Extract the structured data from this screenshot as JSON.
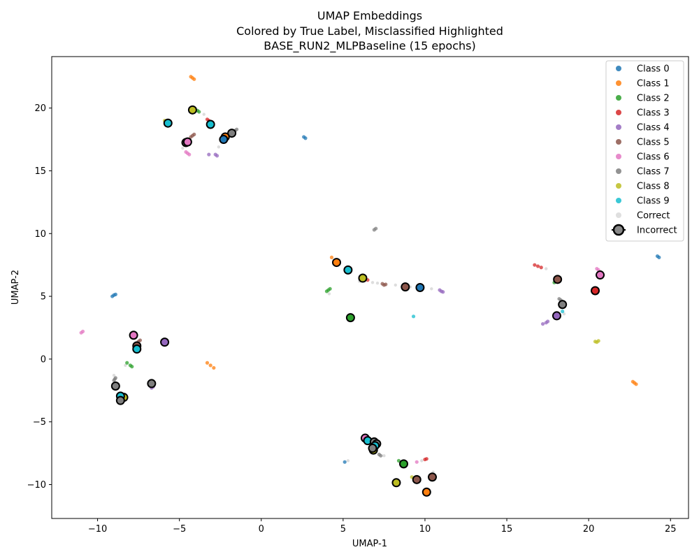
{
  "chart_data": {
    "type": "scatter",
    "title_lines": [
      "UMAP Embeddings",
      "Colored by True Label, Misclassified Highlighted",
      "BASE_RUN2_MLPBaseline (15 epochs)"
    ],
    "xlabel": "UMAP-1",
    "ylabel": "UMAP-2",
    "xlim": [
      -12.8,
      26.1
    ],
    "ylim": [
      -12.7,
      24.1
    ],
    "xticks": [
      -10,
      -5,
      0,
      5,
      10,
      15,
      20,
      25
    ],
    "yticks": [
      -10,
      -5,
      0,
      5,
      10,
      15,
      20
    ],
    "grid": false,
    "legend_position": "top-right",
    "colors": {
      "Class 0": "#1f77b4",
      "Class 1": "#ff7f0e",
      "Class 2": "#2ca02c",
      "Class 3": "#d62728",
      "Class 4": "#9467bd",
      "Class 5": "#8c564b",
      "Class 6": "#e377c2",
      "Class 7": "#7f7f7f",
      "Class 8": "#bcbd22",
      "Class 9": "#17becf",
      "Correct": "#d9d9d9"
    },
    "legend": [
      {
        "label": "Class 0",
        "color": "#1f77b4",
        "kind": "dot"
      },
      {
        "label": "Class 1",
        "color": "#ff7f0e",
        "kind": "dot"
      },
      {
        "label": "Class 2",
        "color": "#2ca02c",
        "kind": "dot"
      },
      {
        "label": "Class 3",
        "color": "#d62728",
        "kind": "dot"
      },
      {
        "label": "Class 4",
        "color": "#9467bd",
        "kind": "dot"
      },
      {
        "label": "Class 5",
        "color": "#8c564b",
        "kind": "dot"
      },
      {
        "label": "Class 6",
        "color": "#e377c2",
        "kind": "dot"
      },
      {
        "label": "Class 7",
        "color": "#7f7f7f",
        "kind": "dot"
      },
      {
        "label": "Class 8",
        "color": "#bcbd22",
        "kind": "dot"
      },
      {
        "label": "Class 9",
        "color": "#17becf",
        "kind": "dot"
      },
      {
        "label": "Correct",
        "color": "#d9d9d9",
        "kind": "dot"
      },
      {
        "label": "Incorrect",
        "color": "#888888",
        "kind": "ring"
      }
    ],
    "clusters": [
      {
        "class": 1,
        "points": [
          [
            -4.3,
            22.5
          ],
          [
            -4.2,
            22.4
          ],
          [
            -4.1,
            22.3
          ]
        ]
      },
      {
        "class": 2,
        "points": [
          [
            -3.9,
            19.8
          ],
          [
            -3.8,
            19.7
          ]
        ]
      },
      {
        "class": 8,
        "points": [
          [
            -5.9,
            19.0
          ]
        ]
      },
      {
        "class": 3,
        "points": [
          [
            -3.3,
            19.1
          ],
          [
            -3.2,
            19.0
          ]
        ]
      },
      {
        "class": 7,
        "points": [
          [
            -1.6,
            18.2
          ],
          [
            -1.5,
            18.3
          ],
          [
            -1.7,
            18.1
          ]
        ]
      },
      {
        "class": 5,
        "points": [
          [
            -4.3,
            17.7
          ],
          [
            -4.2,
            17.8
          ],
          [
            -4.1,
            17.9
          ]
        ]
      },
      {
        "class": 6,
        "points": [
          [
            -4.6,
            16.5
          ],
          [
            -4.5,
            16.4
          ],
          [
            -4.4,
            16.3
          ]
        ]
      },
      {
        "class": 4,
        "points": [
          [
            -2.8,
            16.3
          ],
          [
            -2.7,
            16.2
          ]
        ]
      },
      {
        "class": 4,
        "points": [
          [
            -3.2,
            16.3
          ]
        ]
      },
      {
        "class": 0,
        "points": [
          [
            2.6,
            17.7
          ],
          [
            2.7,
            17.6
          ]
        ]
      },
      {
        "class": 7,
        "points": [
          [
            6.9,
            10.3
          ],
          [
            7.0,
            10.4
          ]
        ]
      },
      {
        "class": 1,
        "points": [
          [
            4.3,
            8.1
          ]
        ]
      },
      {
        "class": 3,
        "points": [
          [
            16.7,
            7.5
          ],
          [
            16.9,
            7.4
          ],
          [
            17.1,
            7.3
          ]
        ]
      },
      {
        "class": 6,
        "points": [
          [
            20.5,
            7.2
          ],
          [
            20.6,
            7.1
          ]
        ]
      },
      {
        "class": 0,
        "points": [
          [
            24.2,
            8.2
          ],
          [
            24.3,
            8.1
          ]
        ]
      },
      {
        "class": 2,
        "points": [
          [
            17.9,
            6.1
          ],
          [
            18.0,
            6.2
          ]
        ]
      },
      {
        "class": 5,
        "points": [
          [
            7.4,
            6.0
          ],
          [
            7.5,
            5.9
          ],
          [
            7.6,
            5.95
          ]
        ]
      },
      {
        "class": 3,
        "points": [
          [
            6.5,
            6.3
          ]
        ]
      },
      {
        "class": 4,
        "points": [
          [
            10.9,
            5.5
          ],
          [
            11.0,
            5.4
          ],
          [
            11.1,
            5.35
          ]
        ]
      },
      {
        "class": 2,
        "points": [
          [
            4.0,
            5.4
          ],
          [
            4.1,
            5.5
          ],
          [
            4.2,
            5.6
          ]
        ]
      },
      {
        "class": 0,
        "points": [
          [
            -9.1,
            5.0
          ],
          [
            -9.0,
            5.1
          ],
          [
            -8.9,
            5.15
          ]
        ]
      },
      {
        "class": 9,
        "points": [
          [
            9.3,
            3.4
          ]
        ]
      },
      {
        "class": 7,
        "points": [
          [
            18.2,
            4.8
          ],
          [
            18.3,
            4.7
          ]
        ]
      },
      {
        "class": 9,
        "points": [
          [
            18.4,
            3.8
          ]
        ]
      },
      {
        "class": 4,
        "points": [
          [
            17.2,
            2.8
          ],
          [
            17.4,
            2.9
          ],
          [
            17.5,
            3.0
          ]
        ]
      },
      {
        "class": 8,
        "points": [
          [
            20.4,
            1.4
          ],
          [
            20.5,
            1.35
          ],
          [
            20.6,
            1.45
          ]
        ]
      },
      {
        "class": 6,
        "points": [
          [
            -11.0,
            2.1
          ],
          [
            -10.9,
            2.2
          ]
        ]
      },
      {
        "class": 5,
        "points": [
          [
            -7.4,
            1.5
          ],
          [
            -7.5,
            1.4
          ]
        ]
      },
      {
        "class": 2,
        "points": [
          [
            -8.2,
            -0.3
          ],
          [
            -8.0,
            -0.5
          ],
          [
            -7.9,
            -0.6
          ]
        ]
      },
      {
        "class": 1,
        "points": [
          [
            -3.3,
            -0.3
          ],
          [
            -3.1,
            -0.5
          ],
          [
            -2.9,
            -0.7
          ]
        ]
      },
      {
        "class": 7,
        "points": [
          [
            -8.9,
            -1.5
          ],
          [
            -8.95,
            -1.6
          ],
          [
            -9.0,
            -1.7
          ]
        ]
      },
      {
        "class": 4,
        "points": [
          [
            -6.6,
            -2.2
          ],
          [
            -6.7,
            -2.3
          ]
        ]
      },
      {
        "class": 1,
        "points": [
          [
            22.7,
            -1.8
          ],
          [
            22.8,
            -1.9
          ],
          [
            22.9,
            -2.0
          ]
        ]
      },
      {
        "class": 0,
        "points": [
          [
            5.1,
            -8.2
          ]
        ]
      },
      {
        "class": 2,
        "points": [
          [
            8.4,
            -8.1
          ]
        ]
      },
      {
        "class": 3,
        "points": [
          [
            10.0,
            -8.0
          ],
          [
            10.1,
            -7.95
          ]
        ]
      },
      {
        "class": 7,
        "points": [
          [
            7.2,
            -7.6
          ],
          [
            7.3,
            -7.7
          ]
        ]
      },
      {
        "class": 8,
        "points": [
          [
            9.2,
            -9.4
          ]
        ]
      },
      {
        "class": 6,
        "points": [
          [
            9.5,
            -8.2
          ]
        ]
      }
    ],
    "correct_points": [
      [
        -3.5,
        19.5
      ],
      [
        -4.8,
        16.8
      ],
      [
        -2.6,
        16.9
      ],
      [
        -3.0,
        18.9
      ],
      [
        -2.2,
        17.6
      ],
      [
        6.0,
        6.2
      ],
      [
        6.8,
        6.1
      ],
      [
        7.1,
        6.05
      ],
      [
        8.2,
        5.9
      ],
      [
        9.1,
        5.75
      ],
      [
        10.4,
        5.6
      ],
      [
        4.15,
        5.2
      ],
      [
        17.4,
        7.2
      ],
      [
        18.5,
        3.6
      ],
      [
        -8.3,
        -0.5
      ],
      [
        -9.0,
        -1.3
      ],
      [
        -7.7,
        1.2
      ],
      [
        5.3,
        -8.1
      ],
      [
        7.5,
        -7.7
      ],
      [
        8.6,
        -8.2
      ],
      [
        9.8,
        -8.1
      ],
      [
        10.2,
        -10.8
      ],
      [
        10.5,
        -9.0
      ]
    ],
    "incorrect": [
      {
        "class": 8,
        "x": -4.2,
        "y": 19.85
      },
      {
        "class": 9,
        "x": -5.7,
        "y": 18.8
      },
      {
        "class": 9,
        "x": -3.1,
        "y": 18.7
      },
      {
        "class": 7,
        "x": -1.8,
        "y": 18.0
      },
      {
        "class": 1,
        "x": -2.2,
        "y": 17.7
      },
      {
        "class": 0,
        "x": -2.3,
        "y": 17.5
      },
      {
        "class": 7,
        "x": -4.6,
        "y": 17.25
      },
      {
        "class": 6,
        "x": -4.5,
        "y": 17.3
      },
      {
        "class": 1,
        "x": 4.6,
        "y": 7.7
      },
      {
        "class": 9,
        "x": 5.3,
        "y": 7.1
      },
      {
        "class": 8,
        "x": 6.2,
        "y": 6.45
      },
      {
        "class": 5,
        "x": 8.8,
        "y": 5.75
      },
      {
        "class": 0,
        "x": 9.7,
        "y": 5.7
      },
      {
        "class": 2,
        "x": 5.45,
        "y": 3.3
      },
      {
        "class": 5,
        "x": 18.1,
        "y": 6.35
      },
      {
        "class": 6,
        "x": 20.7,
        "y": 6.7
      },
      {
        "class": 3,
        "x": 20.4,
        "y": 5.45
      },
      {
        "class": 7,
        "x": 18.4,
        "y": 4.35
      },
      {
        "class": 4,
        "x": 18.05,
        "y": 3.45
      },
      {
        "class": 6,
        "x": -7.8,
        "y": 1.9
      },
      {
        "class": 4,
        "x": -5.9,
        "y": 1.35
      },
      {
        "class": 5,
        "x": -7.6,
        "y": 1.05
      },
      {
        "class": 9,
        "x": -7.6,
        "y": 0.8
      },
      {
        "class": 7,
        "x": -8.9,
        "y": -2.15
      },
      {
        "class": 7,
        "x": -6.7,
        "y": -1.95
      },
      {
        "class": 8,
        "x": -8.4,
        "y": -3.05
      },
      {
        "class": 9,
        "x": -8.6,
        "y": -2.95
      },
      {
        "class": 7,
        "x": -8.6,
        "y": -3.3
      },
      {
        "class": 6,
        "x": 6.35,
        "y": -6.3
      },
      {
        "class": 9,
        "x": 6.5,
        "y": -6.5
      },
      {
        "class": 7,
        "x": 6.9,
        "y": -6.6
      },
      {
        "class": 7,
        "x": 7.05,
        "y": -6.75
      },
      {
        "class": 9,
        "x": 6.95,
        "y": -6.9
      },
      {
        "class": 8,
        "x": 6.85,
        "y": -7.25
      },
      {
        "class": 7,
        "x": 6.8,
        "y": -7.1
      },
      {
        "class": 2,
        "x": 8.7,
        "y": -8.35
      },
      {
        "class": 8,
        "x": 8.25,
        "y": -9.85
      },
      {
        "class": 5,
        "x": 9.5,
        "y": -9.6
      },
      {
        "class": 5,
        "x": 10.45,
        "y": -9.4
      },
      {
        "class": 1,
        "x": 10.1,
        "y": -10.6
      }
    ]
  }
}
